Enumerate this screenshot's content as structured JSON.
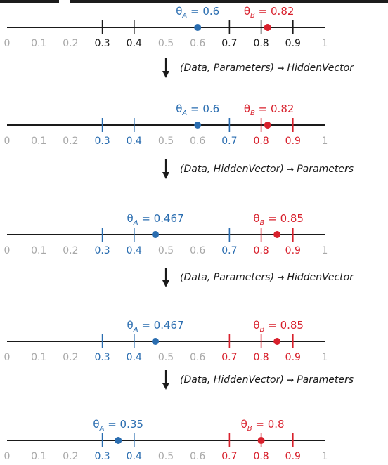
{
  "colors": {
    "blue": "#2a6db0",
    "red": "#d8202c",
    "gray": "#a8a8a8",
    "black": "#1a1a1a"
  },
  "axis_ticks": [
    "0",
    "0.1",
    "0.2",
    "0.3",
    "0.4",
    "0.5",
    "0.6",
    "0.7",
    "0.8",
    "0.9",
    "1"
  ],
  "transitions": [
    {
      "args": "(Data, Parameters)",
      "result": "HiddenVector"
    },
    {
      "args": "(Data, HiddenVector)",
      "result": "Parameters"
    },
    {
      "args": "(Data, Parameters)",
      "result": "HiddenVector"
    },
    {
      "args": "(Data, HiddenVector)",
      "result": "Parameters"
    }
  ],
  "rows": [
    {
      "theta_a": {
        "symbol": "θ",
        "sub": "A",
        "value": 0.6,
        "label": " = 0.6"
      },
      "theta_b": {
        "symbol": "θ",
        "sub": "B",
        "value": 0.82,
        "label": " = 0.82"
      },
      "marks": [
        {
          "x": 0.3,
          "color": "black"
        },
        {
          "x": 0.4,
          "color": "black"
        },
        {
          "x": 0.7,
          "color": "black"
        },
        {
          "x": 0.8,
          "color": "black"
        },
        {
          "x": 0.9,
          "color": "black"
        }
      ]
    },
    {
      "theta_a": {
        "symbol": "θ",
        "sub": "A",
        "value": 0.6,
        "label": " = 0.6"
      },
      "theta_b": {
        "symbol": "θ",
        "sub": "B",
        "value": 0.82,
        "label": " = 0.82"
      },
      "marks": [
        {
          "x": 0.3,
          "color": "blue"
        },
        {
          "x": 0.4,
          "color": "blue"
        },
        {
          "x": 0.7,
          "color": "blue"
        },
        {
          "x": 0.8,
          "color": "red"
        },
        {
          "x": 0.9,
          "color": "red"
        }
      ]
    },
    {
      "theta_a": {
        "symbol": "θ",
        "sub": "A",
        "value": 0.467,
        "label": " = 0.467"
      },
      "theta_b": {
        "symbol": "θ",
        "sub": "B",
        "value": 0.85,
        "label": " = 0.85"
      },
      "marks": [
        {
          "x": 0.3,
          "color": "blue"
        },
        {
          "x": 0.4,
          "color": "blue"
        },
        {
          "x": 0.7,
          "color": "blue"
        },
        {
          "x": 0.8,
          "color": "red"
        },
        {
          "x": 0.9,
          "color": "red"
        }
      ]
    },
    {
      "theta_a": {
        "symbol": "θ",
        "sub": "A",
        "value": 0.467,
        "label": " = 0.467"
      },
      "theta_b": {
        "symbol": "θ",
        "sub": "B",
        "value": 0.85,
        "label": " = 0.85"
      },
      "marks": [
        {
          "x": 0.3,
          "color": "blue"
        },
        {
          "x": 0.4,
          "color": "blue"
        },
        {
          "x": 0.7,
          "color": "red"
        },
        {
          "x": 0.8,
          "color": "red"
        },
        {
          "x": 0.9,
          "color": "red"
        }
      ]
    },
    {
      "theta_a": {
        "symbol": "θ",
        "sub": "A",
        "value": 0.35,
        "label": " = 0.35"
      },
      "theta_b": {
        "symbol": "θ",
        "sub": "B",
        "value": 0.8,
        "label": " = 0.8"
      },
      "marks": [
        {
          "x": 0.3,
          "color": "blue"
        },
        {
          "x": 0.4,
          "color": "blue"
        },
        {
          "x": 0.7,
          "color": "red"
        },
        {
          "x": 0.8,
          "color": "red"
        },
        {
          "x": 0.9,
          "color": "red"
        }
      ]
    }
  ]
}
